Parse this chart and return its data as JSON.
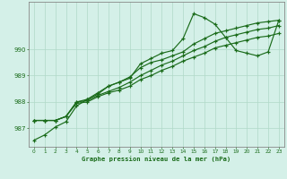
{
  "title": "Graphe pression niveau de la mer (hPa)",
  "bg_color": "#d4f0e8",
  "line_color": "#1a6b1a",
  "grid_color": "#b0d8c8",
  "ylim": [
    986.3,
    991.8
  ],
  "yticks": [
    987,
    988,
    989,
    990
  ],
  "lines": [
    [
      986.55,
      986.75,
      987.05,
      987.25,
      987.85,
      988.1,
      988.35,
      988.6,
      988.75,
      988.9,
      989.45,
      989.65,
      989.85,
      989.95,
      990.4,
      991.35,
      991.2,
      990.95,
      990.45,
      989.95,
      989.85,
      989.75,
      989.9,
      991.1
    ],
    [
      987.3,
      987.3,
      987.3,
      987.45,
      988.0,
      988.1,
      988.3,
      988.6,
      988.75,
      988.95,
      989.3,
      989.5,
      989.6,
      989.75,
      989.9,
      990.2,
      990.4,
      990.6,
      990.7,
      990.8,
      990.9,
      991.0,
      991.05,
      991.1
    ],
    [
      987.3,
      987.3,
      987.3,
      987.45,
      988.0,
      988.05,
      988.25,
      988.4,
      988.55,
      988.75,
      989.0,
      989.2,
      989.4,
      989.55,
      989.75,
      989.95,
      990.1,
      990.3,
      990.45,
      990.55,
      990.65,
      990.75,
      990.8,
      990.9
    ],
    [
      987.3,
      987.3,
      987.3,
      987.45,
      987.95,
      988.0,
      988.2,
      988.35,
      988.45,
      988.6,
      988.85,
      989.0,
      989.2,
      989.35,
      989.55,
      989.7,
      989.85,
      990.05,
      990.15,
      990.25,
      990.35,
      990.45,
      990.5,
      990.6
    ]
  ]
}
